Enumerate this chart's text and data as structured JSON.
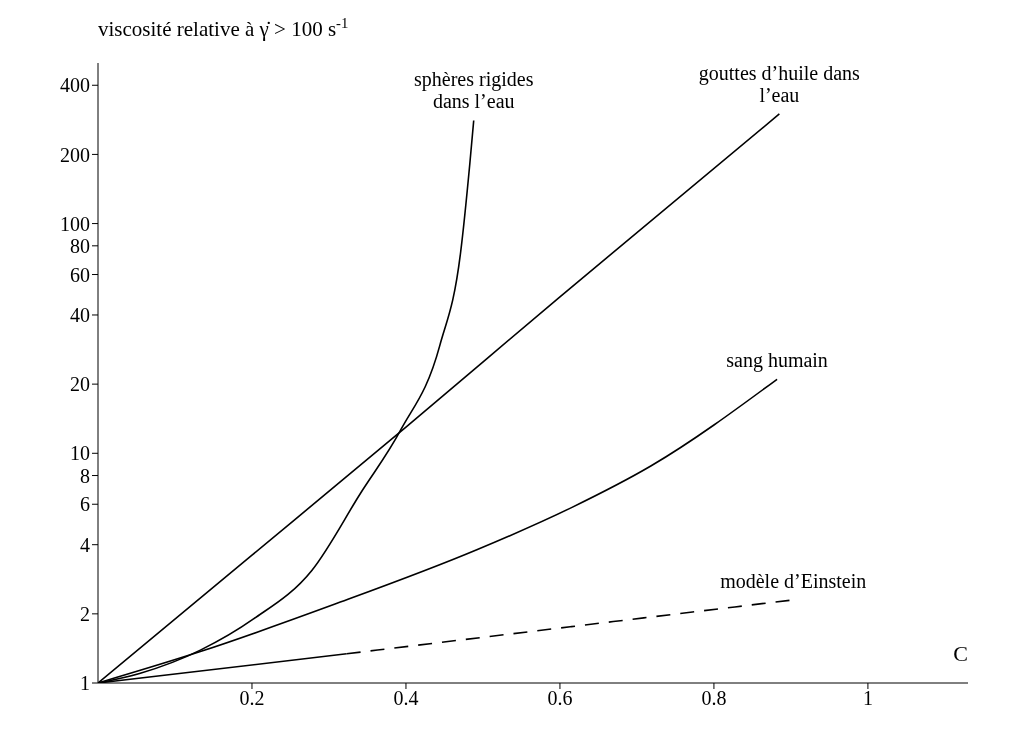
{
  "chart_data": {
    "type": "line",
    "xlabel": "C",
    "ylabel": "viscosité relative à γ̇ > 100 s$^{-1}$",
    "log": "y",
    "grid": false,
    "legend": false,
    "marker": "none",
    "xlim": [
      0,
      1.13
    ],
    "xticks": [
      0.2,
      0.4,
      0.6,
      0.8,
      1
    ],
    "ylim": [
      1,
      500
    ],
    "yticks": [
      1,
      2,
      4,
      6,
      8,
      10,
      20,
      40,
      60,
      80,
      100,
      200,
      400
    ],
    "series": [
      {
        "name": "sphères rigides\ndans l’eau",
        "color": "#000000",
        "line_style": "solid",
        "x": [
          0,
          0.054,
          0.133,
          0.202,
          0.278,
          0.341,
          0.393,
          0.444,
          0.471,
          0.483,
          0.488
        ],
        "values": [
          1,
          1.1,
          1.39,
          1.9,
          3.1,
          6.7,
          12.6,
          29.5,
          75,
          183,
          281
        ]
      },
      {
        "name": "gouttes d’huile dans\nl’eau",
        "color": "#000000",
        "line_style": "solid",
        "x": [
          0,
          0.2,
          0.4,
          0.6,
          0.885
        ],
        "values": [
          1,
          3.6,
          13,
          48,
          300
        ]
      },
      {
        "name": "sang humain",
        "color": "#000000",
        "line_style": "solid",
        "x": [
          0,
          0.133,
          0.307,
          0.492,
          0.615,
          0.718,
          0.882
        ],
        "values": [
          1,
          1.37,
          2.2,
          3.8,
          5.8,
          8.8,
          21
        ]
      },
      {
        "color": "#000000",
        "line_style": "solid",
        "x": [
          0,
          0.323
        ],
        "values": [
          1,
          1.34
        ]
      },
      {
        "name": "modèle d’Einstein",
        "color": "#000000",
        "line_style": "dashed",
        "x": [
          0.323,
          0.615,
          0.903
        ],
        "values": [
          1.34,
          1.76,
          2.3
        ]
      }
    ]
  }
}
